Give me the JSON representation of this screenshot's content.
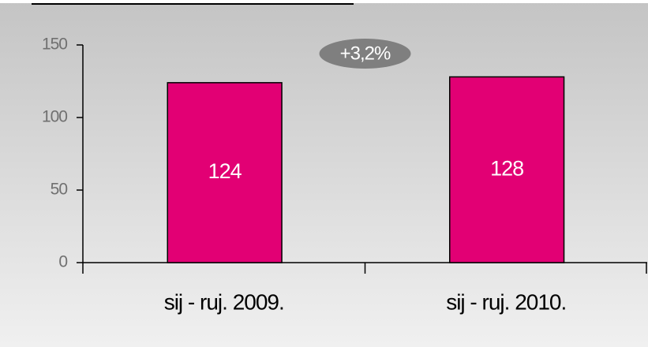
{
  "chart_data": {
    "type": "bar",
    "categories": [
      "sij - ruj. 2009.",
      "sij - ruj. 2010."
    ],
    "values": [
      124,
      128
    ],
    "color": "#e20074",
    "ylim": [
      0,
      150
    ],
    "yticks": [
      0,
      50,
      100,
      150
    ],
    "annotation": "+3,2%"
  }
}
